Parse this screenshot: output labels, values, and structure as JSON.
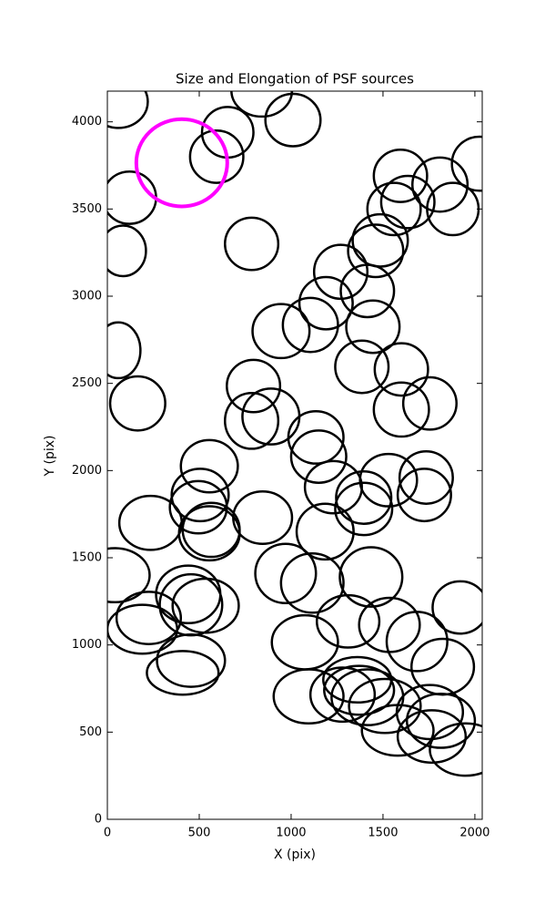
{
  "chart_data": {
    "type": "ellipse",
    "title": "Size and Elongation of PSF sources",
    "xlabel": "X (pix)",
    "ylabel": "Y (pix)",
    "xlim": [
      0,
      2040
    ],
    "ylim": [
      0,
      4176
    ],
    "xticks": [
      0,
      500,
      1000,
      1500,
      2000
    ],
    "yticks": [
      0,
      500,
      1000,
      1500,
      2000,
      2500,
      3000,
      3500,
      4000
    ],
    "series": [
      {
        "color": "#000000",
        "x": [
          60,
          840,
          655,
          595,
          1010,
          120,
          85,
          785,
          1595,
          1810,
          2025,
          1635,
          1560,
          1880,
          1485,
          1460,
          1270,
          1190,
          1415,
          1105,
          945,
          1445,
          60,
          1385,
          1600,
          795,
          165,
          1755,
          1600,
          890,
          785,
          1135,
          1150,
          555,
          1735,
          1530,
          1230,
          505,
          1725,
          1395,
          1395,
          495,
          845,
          235,
          565,
          555,
          1185,
          40,
          970,
          1115,
          1435,
          440,
          455,
          535,
          225,
          1920,
          1310,
          1535,
          190,
          1685,
          1075,
          1825,
          455,
          410,
          1360,
          1370,
          1095,
          1280,
          1415,
          1510,
          1755,
          1815,
          1580,
          1765,
          1950
        ],
        "y": [
          4115,
          4180,
          3940,
          3800,
          4010,
          3565,
          3260,
          3300,
          3690,
          3640,
          3760,
          3540,
          3500,
          3500,
          3320,
          3260,
          3140,
          2960,
          3030,
          2835,
          2800,
          2825,
          2690,
          2595,
          2580,
          2485,
          2385,
          2385,
          2350,
          2310,
          2285,
          2190,
          2080,
          2025,
          1960,
          1945,
          1905,
          1860,
          1860,
          1845,
          1780,
          1790,
          1730,
          1700,
          1660,
          1640,
          1650,
          1400,
          1410,
          1355,
          1390,
          1290,
          1230,
          1225,
          1155,
          1215,
          1135,
          1115,
          1090,
          1020,
          1015,
          875,
          910,
          840,
          800,
          740,
          705,
          715,
          700,
          650,
          615,
          565,
          510,
          475,
          400
        ],
        "widths": [
          320,
          330,
          280,
          290,
          300,
          290,
          250,
          290,
          290,
          300,
          300,
          290,
          290,
          280,
          300,
          300,
          290,
          290,
          290,
          300,
          310,
          290,
          240,
          290,
          290,
          290,
          300,
          290,
          300,
          310,
          290,
          300,
          300,
          310,
          290,
          310,
          310,
          310,
          290,
          300,
          310,
          310,
          320,
          340,
          310,
          330,
          310,
          380,
          330,
          340,
          340,
          350,
          340,
          360,
          350,
          300,
          340,
          330,
          380,
          330,
          360,
          340,
          370,
          390,
          370,
          380,
          380,
          350,
          390,
          390,
          360,
          370,
          390,
          370,
          390
        ],
        "heights": [
          300,
          300,
          290,
          300,
          300,
          300,
          290,
          300,
          300,
          310,
          310,
          300,
          300,
          300,
          300,
          300,
          310,
          300,
          300,
          310,
          310,
          300,
          320,
          300,
          300,
          300,
          310,
          300,
          310,
          320,
          320,
          300,
          300,
          300,
          300,
          300,
          300,
          300,
          300,
          300,
          300,
          300,
          300,
          310,
          310,
          310,
          320,
          310,
          340,
          340,
          340,
          330,
          350,
          310,
          300,
          300,
          300,
          310,
          280,
          340,
          310,
          320,
          300,
          250,
          260,
          280,
          310,
          310,
          320,
          310,
          310,
          310,
          290,
          300,
          300
        ]
      },
      {
        "color": "#ff00ff",
        "x": [
          405
        ],
        "y": [
          3765
        ],
        "widths": [
          495
        ],
        "heights": [
          500
        ]
      }
    ]
  }
}
